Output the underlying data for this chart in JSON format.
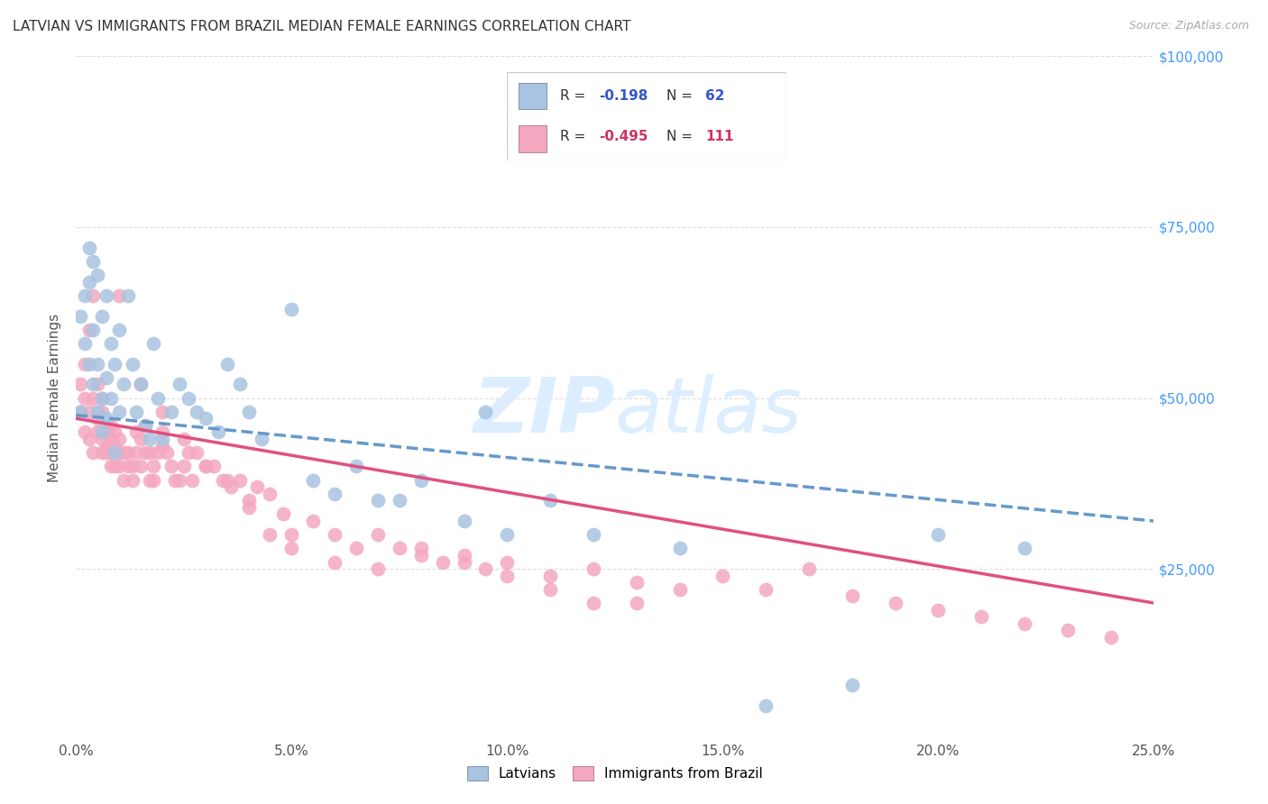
{
  "title": "LATVIAN VS IMMIGRANTS FROM BRAZIL MEDIAN FEMALE EARNINGS CORRELATION CHART",
  "source": "Source: ZipAtlas.com",
  "ylabel": "Median Female Earnings",
  "xlim": [
    0.0,
    0.25
  ],
  "ylim": [
    0,
    100000
  ],
  "latvian_R": -0.198,
  "latvian_N": 62,
  "brazil_R": -0.495,
  "brazil_N": 111,
  "latvian_color": "#a8c4e0",
  "brazil_color": "#f4a8c0",
  "latvian_line_color": "#6699cc",
  "brazil_line_color": "#e05080",
  "legend_text_color_blue": "#3355cc",
  "legend_text_color_pink": "#cc3366",
  "watermark_color": "#dceeff",
  "right_axis_color": "#4499ff",
  "grid_color": "#dddddd",
  "title_color": "#333333",
  "source_color": "#aaaaaa",
  "ylabel_color": "#555555",
  "xtick_color": "#555555",
  "latvian_x": [
    0.001,
    0.001,
    0.002,
    0.002,
    0.003,
    0.003,
    0.003,
    0.004,
    0.004,
    0.004,
    0.005,
    0.005,
    0.005,
    0.006,
    0.006,
    0.006,
    0.007,
    0.007,
    0.007,
    0.008,
    0.008,
    0.009,
    0.009,
    0.01,
    0.01,
    0.011,
    0.012,
    0.013,
    0.014,
    0.015,
    0.016,
    0.017,
    0.018,
    0.019,
    0.02,
    0.022,
    0.024,
    0.026,
    0.028,
    0.03,
    0.033,
    0.035,
    0.038,
    0.04,
    0.043,
    0.05,
    0.055,
    0.06,
    0.065,
    0.07,
    0.075,
    0.08,
    0.09,
    0.095,
    0.1,
    0.11,
    0.12,
    0.14,
    0.16,
    0.18,
    0.2,
    0.22
  ],
  "latvian_y": [
    48000,
    62000,
    65000,
    58000,
    67000,
    55000,
    72000,
    52000,
    60000,
    70000,
    48000,
    55000,
    68000,
    50000,
    62000,
    45000,
    53000,
    47000,
    65000,
    50000,
    58000,
    42000,
    55000,
    60000,
    48000,
    52000,
    65000,
    55000,
    48000,
    52000,
    46000,
    44000,
    58000,
    50000,
    44000,
    48000,
    52000,
    50000,
    48000,
    47000,
    45000,
    55000,
    52000,
    48000,
    44000,
    63000,
    38000,
    36000,
    40000,
    35000,
    35000,
    38000,
    32000,
    48000,
    30000,
    35000,
    30000,
    28000,
    5000,
    8000,
    30000,
    28000
  ],
  "brazil_x": [
    0.001,
    0.001,
    0.002,
    0.002,
    0.002,
    0.003,
    0.003,
    0.003,
    0.004,
    0.004,
    0.004,
    0.005,
    0.005,
    0.005,
    0.005,
    0.006,
    0.006,
    0.006,
    0.006,
    0.007,
    0.007,
    0.007,
    0.007,
    0.008,
    0.008,
    0.008,
    0.008,
    0.009,
    0.009,
    0.009,
    0.01,
    0.01,
    0.01,
    0.011,
    0.011,
    0.012,
    0.012,
    0.013,
    0.013,
    0.014,
    0.014,
    0.015,
    0.015,
    0.016,
    0.016,
    0.017,
    0.017,
    0.018,
    0.018,
    0.019,
    0.02,
    0.02,
    0.021,
    0.022,
    0.023,
    0.024,
    0.025,
    0.026,
    0.027,
    0.028,
    0.03,
    0.032,
    0.034,
    0.036,
    0.038,
    0.04,
    0.042,
    0.045,
    0.048,
    0.05,
    0.055,
    0.06,
    0.065,
    0.07,
    0.075,
    0.08,
    0.085,
    0.09,
    0.095,
    0.1,
    0.11,
    0.12,
    0.13,
    0.14,
    0.15,
    0.16,
    0.17,
    0.18,
    0.19,
    0.2,
    0.21,
    0.22,
    0.23,
    0.24,
    0.01,
    0.015,
    0.02,
    0.025,
    0.03,
    0.035,
    0.04,
    0.045,
    0.05,
    0.06,
    0.07,
    0.08,
    0.09,
    0.1,
    0.11,
    0.12,
    0.13
  ],
  "brazil_y": [
    48000,
    52000,
    45000,
    50000,
    55000,
    44000,
    48000,
    60000,
    42000,
    50000,
    65000,
    47000,
    52000,
    45000,
    48000,
    42000,
    50000,
    44000,
    48000,
    43000,
    46000,
    42000,
    45000,
    40000,
    44000,
    42000,
    46000,
    40000,
    43000,
    45000,
    42000,
    40000,
    44000,
    42000,
    38000,
    40000,
    42000,
    38000,
    40000,
    42000,
    45000,
    40000,
    44000,
    42000,
    46000,
    42000,
    38000,
    40000,
    38000,
    42000,
    43000,
    45000,
    42000,
    40000,
    38000,
    38000,
    40000,
    42000,
    38000,
    42000,
    40000,
    40000,
    38000,
    37000,
    38000,
    35000,
    37000,
    36000,
    33000,
    30000,
    32000,
    30000,
    28000,
    30000,
    28000,
    27000,
    26000,
    27000,
    25000,
    26000,
    24000,
    25000,
    23000,
    22000,
    24000,
    22000,
    25000,
    21000,
    20000,
    19000,
    18000,
    17000,
    16000,
    15000,
    65000,
    52000,
    48000,
    44000,
    40000,
    38000,
    34000,
    30000,
    28000,
    26000,
    25000,
    28000,
    26000,
    24000,
    22000,
    20000,
    20000
  ]
}
